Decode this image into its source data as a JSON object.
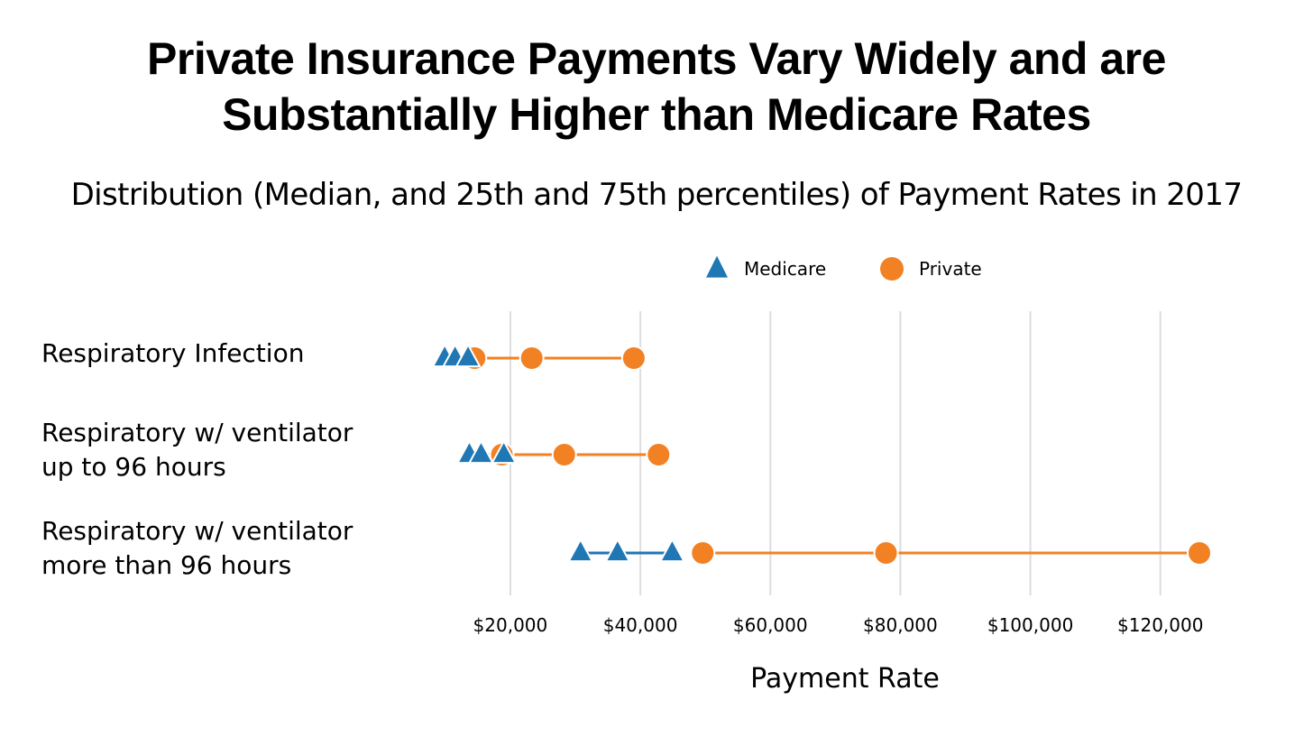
{
  "chart_data": {
    "type": "dot-range",
    "title_lines": [
      "Private Insurance Payments Vary Widely and are",
      "Substantially Higher than Medicare Rates"
    ],
    "subtitle": "Distribution (Median, and 25th and 75th percentiles) of Payment Rates in 2017",
    "xlabel": "Payment Rate",
    "xlim": [
      6000,
      126000
    ],
    "x_ticks": [
      20000,
      40000,
      60000,
      80000,
      100000,
      120000
    ],
    "x_tick_labels": [
      "$20,000",
      "$40,000",
      "$60,000",
      "$80,000",
      "$100,000",
      "$120,000"
    ],
    "grid": true,
    "legend_position": "top",
    "categories": [
      [
        "Respiratory Infection"
      ],
      [
        "Respiratory w/ ventilator",
        "up to 96 hours"
      ],
      [
        "Respiratory w/ ventilator",
        "more than 96 hours"
      ]
    ],
    "series": [
      {
        "name": "Medicare",
        "marker": "triangle",
        "color": "#1f77b4",
        "values": [
          {
            "p25": 9900,
            "median": 11500,
            "p75": 13500
          },
          {
            "p25": 13700,
            "median": 15500,
            "p75": 19000
          },
          {
            "p25": 30800,
            "median": 36500,
            "p75": 44900
          }
        ]
      },
      {
        "name": "Private",
        "marker": "circle",
        "color": "#f28124",
        "values": [
          {
            "p25": 14500,
            "median": 23300,
            "p75": 39000
          },
          {
            "p25": 18700,
            "median": 28300,
            "p75": 42800
          },
          {
            "p25": 49600,
            "median": 77800,
            "p75": 126000
          }
        ]
      }
    ]
  }
}
